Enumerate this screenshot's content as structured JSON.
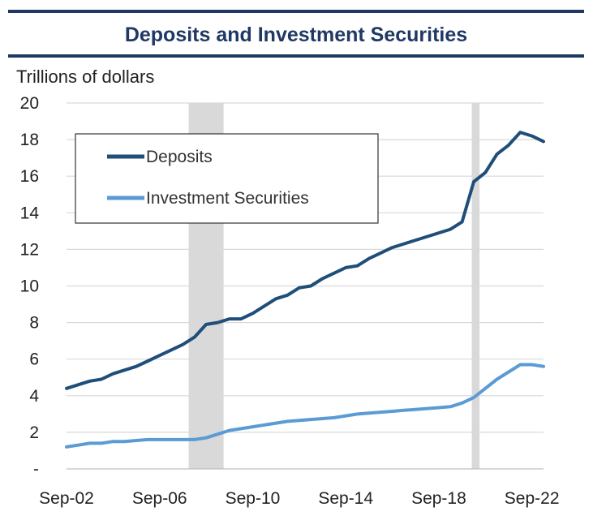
{
  "header": {
    "title": "Deposits and Investment Securities"
  },
  "chart_data": {
    "type": "line",
    "title": "Deposits and Investment Securities",
    "ylabel": "Trillions of dollars",
    "xlabel": "",
    "ylim": [
      0,
      20
    ],
    "y_ticks": [
      "-",
      "2",
      "4",
      "6",
      "8",
      "10",
      "12",
      "14",
      "16",
      "18",
      "20"
    ],
    "x_range": [
      "2002-09",
      "2023-03"
    ],
    "x_ticks": [
      "Sep-02",
      "Sep-06",
      "Sep-10",
      "Sep-14",
      "Sep-18",
      "Sep-22"
    ],
    "grid": "horizontal",
    "legend_position": "top-left",
    "shaded_periods": [
      [
        "2007-12",
        "2009-06"
      ],
      [
        "2020-02",
        "2020-06"
      ]
    ],
    "series": [
      {
        "name": "Deposits",
        "color": "#1f4e79",
        "points": [
          [
            "2002-09",
            4.4
          ],
          [
            "2003-03",
            4.6
          ],
          [
            "2003-09",
            4.8
          ],
          [
            "2004-03",
            4.9
          ],
          [
            "2004-09",
            5.2
          ],
          [
            "2005-03",
            5.4
          ],
          [
            "2005-09",
            5.6
          ],
          [
            "2006-03",
            5.9
          ],
          [
            "2006-09",
            6.2
          ],
          [
            "2007-03",
            6.5
          ],
          [
            "2007-09",
            6.8
          ],
          [
            "2008-03",
            7.2
          ],
          [
            "2008-09",
            7.9
          ],
          [
            "2009-03",
            8.0
          ],
          [
            "2009-09",
            8.2
          ],
          [
            "2010-03",
            8.2
          ],
          [
            "2010-09",
            8.5
          ],
          [
            "2011-03",
            8.9
          ],
          [
            "2011-09",
            9.3
          ],
          [
            "2012-03",
            9.5
          ],
          [
            "2012-09",
            9.9
          ],
          [
            "2013-03",
            10.0
          ],
          [
            "2013-09",
            10.4
          ],
          [
            "2014-03",
            10.7
          ],
          [
            "2014-09",
            11.0
          ],
          [
            "2015-03",
            11.1
          ],
          [
            "2015-09",
            11.5
          ],
          [
            "2016-03",
            11.8
          ],
          [
            "2016-09",
            12.1
          ],
          [
            "2017-03",
            12.3
          ],
          [
            "2017-09",
            12.5
          ],
          [
            "2018-03",
            12.7
          ],
          [
            "2018-09",
            12.9
          ],
          [
            "2019-03",
            13.1
          ],
          [
            "2019-09",
            13.5
          ],
          [
            "2020-03",
            15.7
          ],
          [
            "2020-09",
            16.2
          ],
          [
            "2021-03",
            17.2
          ],
          [
            "2021-09",
            17.7
          ],
          [
            "2022-03",
            18.4
          ],
          [
            "2022-09",
            18.2
          ],
          [
            "2023-03",
            17.9
          ]
        ]
      },
      {
        "name": "Investment Securities",
        "color": "#5b9bd5",
        "points": [
          [
            "2002-09",
            1.2
          ],
          [
            "2003-03",
            1.3
          ],
          [
            "2003-09",
            1.4
          ],
          [
            "2004-03",
            1.4
          ],
          [
            "2004-09",
            1.5
          ],
          [
            "2005-03",
            1.5
          ],
          [
            "2005-09",
            1.55
          ],
          [
            "2006-03",
            1.6
          ],
          [
            "2006-09",
            1.6
          ],
          [
            "2007-03",
            1.6
          ],
          [
            "2007-09",
            1.6
          ],
          [
            "2008-03",
            1.6
          ],
          [
            "2008-09",
            1.7
          ],
          [
            "2009-03",
            1.9
          ],
          [
            "2009-09",
            2.1
          ],
          [
            "2010-03",
            2.2
          ],
          [
            "2010-09",
            2.3
          ],
          [
            "2011-03",
            2.4
          ],
          [
            "2011-09",
            2.5
          ],
          [
            "2012-03",
            2.6
          ],
          [
            "2012-09",
            2.65
          ],
          [
            "2013-03",
            2.7
          ],
          [
            "2013-09",
            2.75
          ],
          [
            "2014-03",
            2.8
          ],
          [
            "2014-09",
            2.9
          ],
          [
            "2015-03",
            3.0
          ],
          [
            "2015-09",
            3.05
          ],
          [
            "2016-03",
            3.1
          ],
          [
            "2016-09",
            3.15
          ],
          [
            "2017-03",
            3.2
          ],
          [
            "2017-09",
            3.25
          ],
          [
            "2018-03",
            3.3
          ],
          [
            "2018-09",
            3.35
          ],
          [
            "2019-03",
            3.4
          ],
          [
            "2019-09",
            3.6
          ],
          [
            "2020-03",
            3.9
          ],
          [
            "2020-09",
            4.4
          ],
          [
            "2021-03",
            4.9
          ],
          [
            "2021-09",
            5.3
          ],
          [
            "2022-03",
            5.7
          ],
          [
            "2022-09",
            5.7
          ],
          [
            "2023-03",
            5.6
          ]
        ]
      }
    ]
  }
}
